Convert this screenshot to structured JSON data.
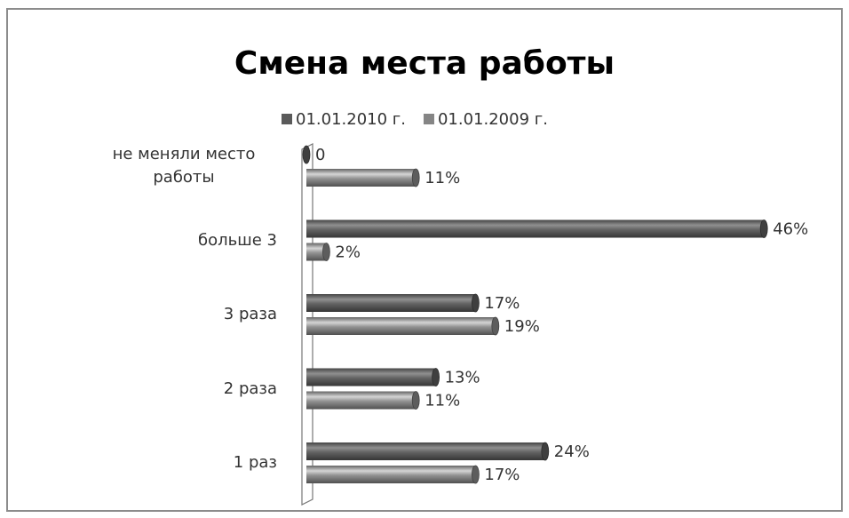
{
  "chart_data": {
    "type": "bar",
    "orientation": "horizontal",
    "title": "Смена места работы",
    "categories": [
      "не меняли место работы",
      "больше 3",
      "3 раза",
      "2 раза",
      "1 раз"
    ],
    "series": [
      {
        "name": "01.01.2010 г.",
        "color": "#5a5a5a",
        "values": [
          0,
          46,
          17,
          13,
          24
        ],
        "value_labels": [
          "0",
          "46%",
          "17%",
          "13%",
          "24%"
        ]
      },
      {
        "name": "01.01.2009 г.",
        "color": "#858585",
        "values": [
          11,
          2,
          19,
          11,
          17
        ],
        "value_labels": [
          "11%",
          "2%",
          "19%",
          "11%",
          "17%"
        ]
      }
    ],
    "legend": "top"
  }
}
